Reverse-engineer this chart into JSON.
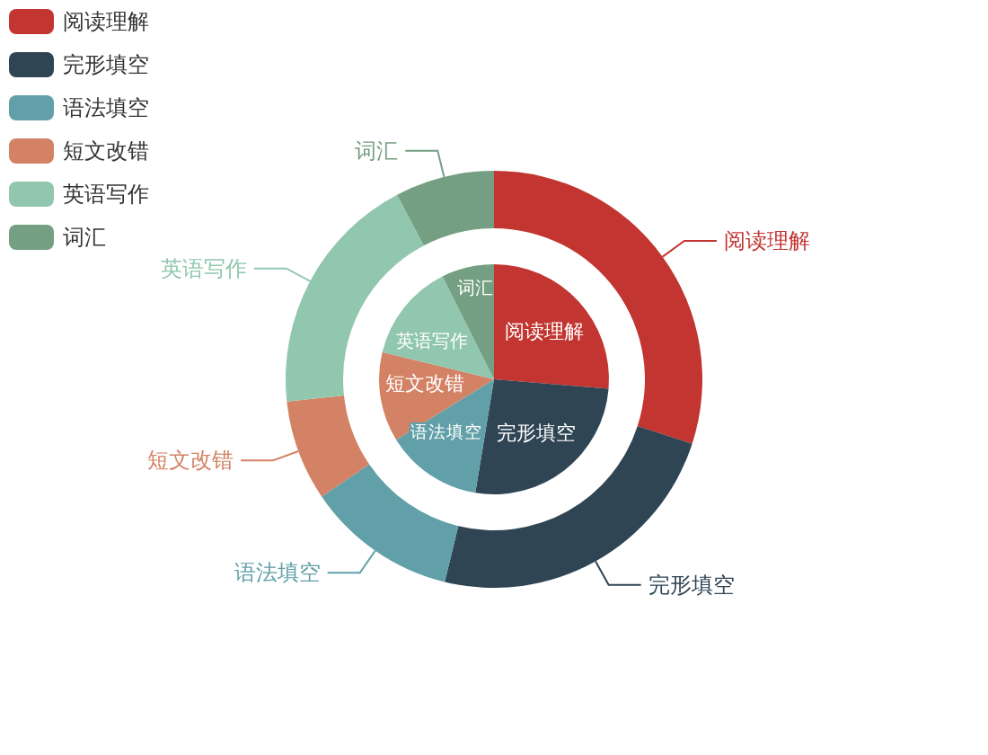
{
  "chart_data": {
    "type": "pie",
    "categories": [
      "阅读理解",
      "完形填空",
      "语法填空",
      "短文改错",
      "英语写作",
      "词汇"
    ],
    "colors": [
      "#c23531",
      "#2f4554",
      "#61a0a8",
      "#d48265",
      "#91c7ae",
      "#749f83"
    ],
    "legend": "top left",
    "series": [
      {
        "values": [
          26.3,
          26.3,
          13.6,
          12.6,
          13.8,
          7.4
        ]
      },
      {
        "type": "donut",
        "values": [
          30.0,
          23.8,
          11.7,
          7.8,
          19.0,
          7.7
        ]
      }
    ]
  }
}
